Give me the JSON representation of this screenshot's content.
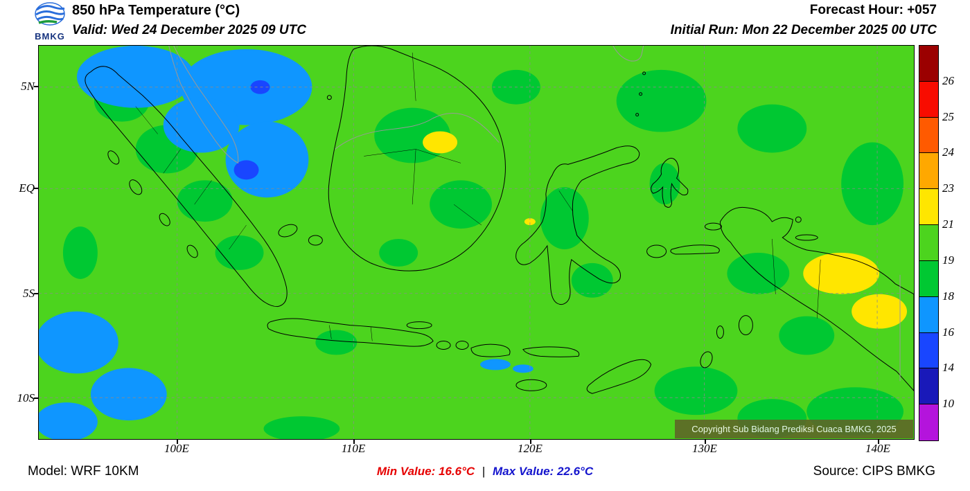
{
  "header": {
    "logo_text": "BMKG",
    "title": "850 hPa Temperature (°C)",
    "valid_time": "Valid: Wed 24 December 2025 09 UTC",
    "forecast_hour": "Forecast Hour: +057",
    "initial_run": "Initial Run: Mon 22 December 2025 00 UTC"
  },
  "map": {
    "lat_labels": [
      "5N",
      "EQ",
      "5S",
      "10S"
    ],
    "lon_labels": [
      "100E",
      "110E",
      "120E",
      "130E",
      "140E"
    ],
    "copyright": "Copyright Sub Bidang Prediksi Cuaca BMKG, 2025"
  },
  "colorbar": {
    "bands": [
      {
        "color": "#9b0000",
        "label": "26"
      },
      {
        "color": "#f80c00",
        "label": "25"
      },
      {
        "color": "#ff5a00",
        "label": "24"
      },
      {
        "color": "#ffa800",
        "label": "23"
      },
      {
        "color": "#ffe600",
        "label": "21"
      },
      {
        "color": "#4cd41e",
        "label": "19"
      },
      {
        "color": "#00c832",
        "label": "18"
      },
      {
        "color": "#0f96ff",
        "label": "16"
      },
      {
        "color": "#1946ff",
        "label": "14"
      },
      {
        "color": "#1919b9",
        "label": "10"
      },
      {
        "color": "#b414dc",
        "label": ""
      }
    ]
  },
  "footer": {
    "model": "Model: WRF 10KM",
    "min_value": "Min Value: 16.6°C",
    "separator": "|",
    "max_value": "Max Value: 22.6°C",
    "source": "Source: CIPS BMKG"
  },
  "colors": {
    "base": "#4cd41e",
    "green_patch": "#00c832",
    "blue_patch": "#0f96ff",
    "deep_blue_patch": "#1946ff",
    "yellow_patch": "#ffe600",
    "coastline": "#000000",
    "foreign_coastline": "#999999",
    "gridline": "#8a8a8a",
    "min_text": "#e60000",
    "max_text": "#1414cd",
    "copyright_bg": "#5f6428"
  }
}
